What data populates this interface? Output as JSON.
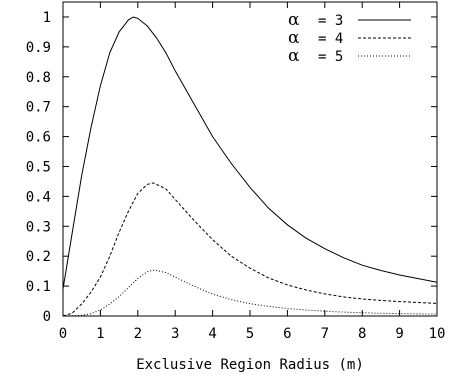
{
  "chart_data": {
    "type": "line",
    "title": "",
    "xlabel": "Exclusive Region Radius (m)",
    "ylabel": "",
    "xlim": [
      0,
      10
    ],
    "ylim": [
      0,
      1.05
    ],
    "xticks": [
      0,
      1,
      2,
      3,
      4,
      5,
      6,
      7,
      8,
      9,
      10
    ],
    "xtick_labels": [
      "0",
      "1",
      "2",
      "3",
      "4",
      "5",
      "6",
      "7",
      "8",
      "9",
      "10"
    ],
    "yticks": [
      0,
      0.1,
      0.2,
      0.3,
      0.4,
      0.5,
      0.6,
      0.7,
      0.8,
      0.9,
      1
    ],
    "ytick_labels": [
      "0",
      "0.1",
      "0.2",
      "0.3",
      "0.4",
      "0.5",
      "0.6",
      "0.7",
      "0.8",
      "0.9",
      "1"
    ],
    "grid": false,
    "legend_position": "top-right",
    "series": [
      {
        "name": "α = 3",
        "legend_symbol": "α",
        "legend_text": "= 3",
        "dash": "solid",
        "color": "#000000",
        "x": [
          0,
          0.25,
          0.5,
          0.75,
          1,
          1.25,
          1.5,
          1.75,
          1.88,
          2,
          2.25,
          2.5,
          2.75,
          3,
          3.5,
          4,
          4.5,
          5,
          5.5,
          6,
          6.5,
          7,
          7.5,
          8,
          8.5,
          9,
          9.5,
          10
        ],
        "y": [
          0.09,
          0.28,
          0.47,
          0.63,
          0.77,
          0.88,
          0.95,
          0.99,
          1.0,
          0.995,
          0.97,
          0.93,
          0.88,
          0.82,
          0.71,
          0.6,
          0.51,
          0.43,
          0.36,
          0.305,
          0.26,
          0.225,
          0.195,
          0.17,
          0.152,
          0.137,
          0.125,
          0.113
        ]
      },
      {
        "name": "α = 4",
        "legend_symbol": "α",
        "legend_text": "= 4",
        "dash": "dashed",
        "color": "#000000",
        "x": [
          0,
          0.25,
          0.5,
          0.75,
          1,
          1.25,
          1.5,
          1.75,
          2,
          2.25,
          2.4,
          2.5,
          2.75,
          3,
          3.5,
          4,
          4.5,
          5,
          5.5,
          6,
          6.5,
          7,
          7.5,
          8,
          8.5,
          9,
          9.5,
          10
        ],
        "y": [
          0.0,
          0.01,
          0.04,
          0.08,
          0.13,
          0.2,
          0.28,
          0.35,
          0.41,
          0.44,
          0.445,
          0.44,
          0.425,
          0.39,
          0.32,
          0.255,
          0.2,
          0.16,
          0.127,
          0.104,
          0.087,
          0.074,
          0.064,
          0.057,
          0.052,
          0.048,
          0.045,
          0.042
        ]
      },
      {
        "name": "α = 5",
        "legend_symbol": "α",
        "legend_text": "= 5",
        "dash": "dotted",
        "color": "#000000",
        "x": [
          0,
          0.5,
          0.75,
          1,
          1.25,
          1.5,
          1.75,
          2,
          2.25,
          2.4,
          2.5,
          2.75,
          3,
          3.5,
          4,
          4.5,
          5,
          5.5,
          6,
          6.5,
          7,
          7.5,
          8,
          8.5,
          9,
          9.5,
          10
        ],
        "y": [
          0.0,
          0.002,
          0.008,
          0.02,
          0.04,
          0.065,
          0.095,
          0.125,
          0.148,
          0.153,
          0.152,
          0.145,
          0.13,
          0.1,
          0.073,
          0.055,
          0.041,
          0.032,
          0.025,
          0.02,
          0.016,
          0.013,
          0.011,
          0.009,
          0.008,
          0.007,
          0.006
        ]
      }
    ]
  }
}
